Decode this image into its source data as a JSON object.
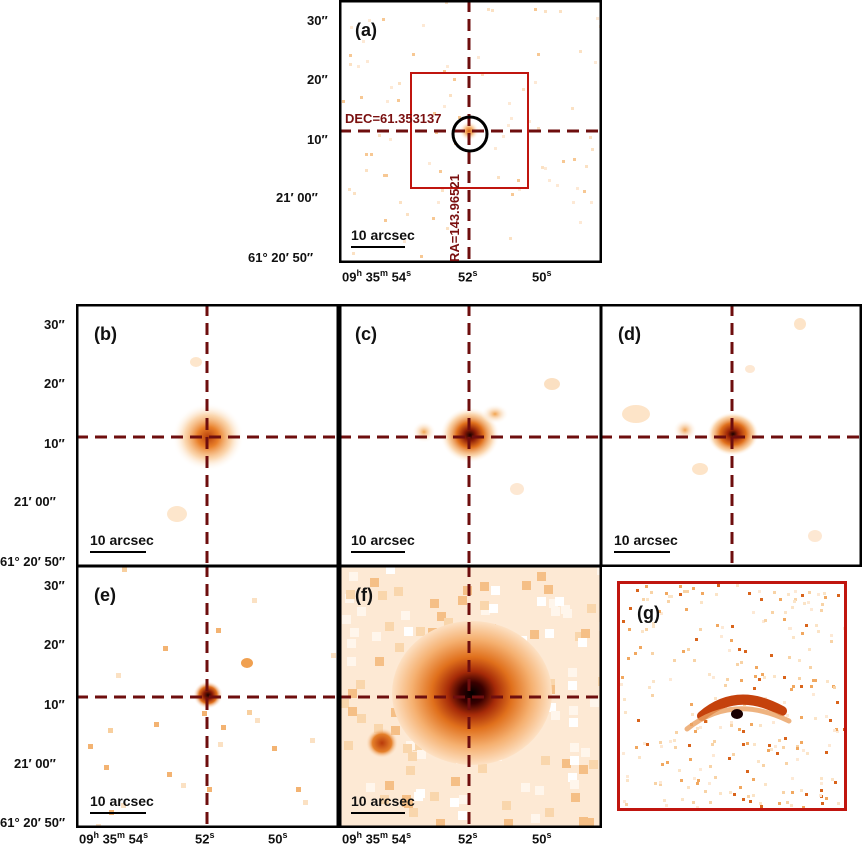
{
  "panels": [
    {
      "id": "a",
      "label": "(a)",
      "scalebar": "10 arcsec"
    },
    {
      "id": "b",
      "label": "(b)",
      "scalebar": "10 arcsec"
    },
    {
      "id": "c",
      "label": "(c)",
      "scalebar": "10 arcsec"
    },
    {
      "id": "d",
      "label": "(d)",
      "scalebar": "10 arcsec"
    },
    {
      "id": "e",
      "label": "(e)",
      "scalebar": "10 arcsec"
    },
    {
      "id": "f",
      "label": "(f)",
      "scalebar": "10 arcsec"
    },
    {
      "id": "g",
      "label": "(g)"
    }
  ],
  "annotations": {
    "dec": "DEC=61.353137",
    "ra": "RA=143.96521"
  },
  "y_ticks": [
    "30″",
    "20″",
    "10″",
    "21′ 00″",
    "61° 20′ 50″"
  ],
  "x_ticks": {
    "first": "09",
    "first_h": "h",
    "second": " 35",
    "second_m": "m",
    "third": " 54",
    "third_s": "s",
    "mid": "52",
    "mid_s": "s",
    "last": "50",
    "last_s": "s"
  },
  "colors": {
    "crosshair": "#6e0e0e",
    "inset_box": "#c0150f",
    "circle": "#000000"
  }
}
